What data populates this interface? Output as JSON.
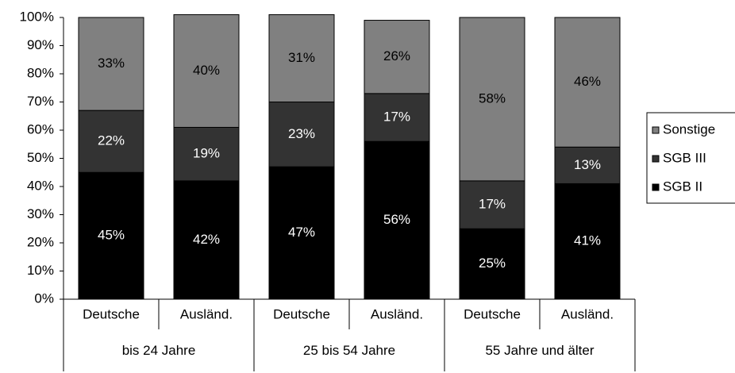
{
  "chart_data": {
    "type": "stacked_bar",
    "categories": [
      "Deutsche",
      "Ausländ.",
      "Deutsche",
      "Ausländ.",
      "Deutsche",
      "Ausländ."
    ],
    "category_groups": [
      "bis 24 Jahre",
      "25 bis 54 Jahre",
      "55 Jahre und älter"
    ],
    "series": [
      {
        "name": "SGB II",
        "color": "#000000",
        "label_color": "#ffffff",
        "values": [
          45,
          42,
          47,
          56,
          25,
          41
        ],
        "value_labels": [
          "45%",
          "42%",
          "47%",
          "56%",
          "25%",
          "41%"
        ]
      },
      {
        "name": "SGB III",
        "color": "#333333",
        "label_color": "#ffffff",
        "values": [
          22,
          19,
          23,
          17,
          17,
          13
        ],
        "value_labels": [
          "22%",
          "19%",
          "23%",
          "17%",
          "17%",
          "13%"
        ]
      },
      {
        "name": "Sonstige",
        "color": "#808080",
        "label_color": "#000000",
        "values": [
          33,
          40,
          31,
          26,
          58,
          46
        ],
        "value_labels": [
          "33%",
          "40%",
          "31%",
          "26%",
          "58%",
          "46%"
        ]
      }
    ],
    "ylim": [
      0,
      100
    ],
    "yticks": [
      {
        "value": 0,
        "label": "0%"
      },
      {
        "value": 10,
        "label": "10%"
      },
      {
        "value": 20,
        "label": "20%"
      },
      {
        "value": 30,
        "label": "30%"
      },
      {
        "value": 40,
        "label": "40%"
      },
      {
        "value": 50,
        "label": "50%"
      },
      {
        "value": 60,
        "label": "60%"
      },
      {
        "value": 70,
        "label": "70%"
      },
      {
        "value": 80,
        "label": "80%"
      },
      {
        "value": 90,
        "label": "90%"
      },
      {
        "value": 100,
        "label": "100%"
      }
    ],
    "legend": "right"
  }
}
